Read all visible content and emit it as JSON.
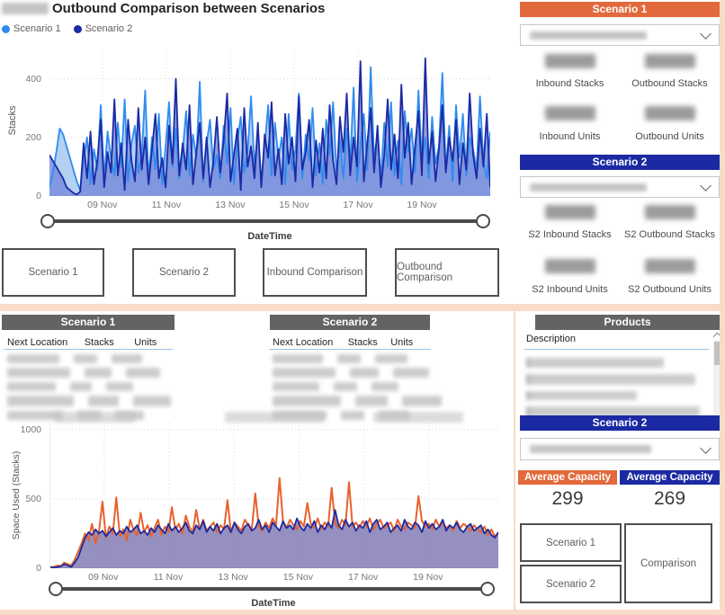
{
  "colors": {
    "accent_orange": "#E2693B",
    "accent_blue": "#1B2AA3",
    "header_gray": "#636363",
    "series_light_blue": "#2E8CF0",
    "series_navy": "#1B2AA5",
    "series_orange": "#E8622C",
    "fill_purple": "#8A84B8",
    "divider_peach": "#F8DBC9"
  },
  "top_chart": {
    "title": "Outbound Comparison between Scenarios",
    "legend": [
      {
        "label": "Scenario 1"
      },
      {
        "label": "Scenario 2"
      }
    ]
  },
  "top_buttons": [
    "Scenario 1",
    "Scenario 2",
    "Inbound Comparison",
    "Outbound Comparison"
  ],
  "scenario1_panel": {
    "header": "Scenario 1",
    "metrics": [
      {
        "label": "Inbound Stacks"
      },
      {
        "label": "Outbound Stacks"
      },
      {
        "label": "Inbound Units"
      },
      {
        "label": "Outbound Units"
      }
    ]
  },
  "scenario2_panel": {
    "header": "Scenario 2",
    "metrics": [
      {
        "label": "S2 Inbound Stacks"
      },
      {
        "label": "S2 Outbound Stacks"
      },
      {
        "label": "S2 Inbound Units"
      },
      {
        "label": "S2 Outbound Units"
      }
    ]
  },
  "tables": {
    "s1": {
      "header": "Scenario 1",
      "columns": [
        "Next Location",
        "Stacks",
        "Units"
      ]
    },
    "s2": {
      "header": "Scenario 2",
      "columns": [
        "Next Location",
        "Stacks",
        "Units"
      ]
    },
    "products": {
      "header": "Products",
      "columns": [
        "Description"
      ]
    }
  },
  "bottom_right": {
    "header": "Scenario 2",
    "capacity": [
      {
        "label": "Average Capacity",
        "value": "299",
        "color": "#E2693B"
      },
      {
        "label": "Average Capacity",
        "value": "269",
        "color": "#1B2AA3"
      }
    ],
    "buttons": [
      "Scenario 1",
      "Scenario 2",
      "Comparison"
    ]
  },
  "chart_data": [
    {
      "type": "area",
      "title": "Outbound Comparison between Scenarios",
      "xlabel": "DateTime",
      "ylabel": "Stacks",
      "yticks": [
        0,
        200,
        400
      ],
      "ylim": [
        0,
        500
      ],
      "grid": true,
      "legend_position": "top-left",
      "xticks": [
        "09 Nov",
        "11 Nov",
        "13 Nov",
        "15 Nov",
        "17 Nov",
        "19 Nov"
      ],
      "xtick_pos": [
        0.12,
        0.265,
        0.41,
        0.555,
        0.7,
        0.845
      ],
      "series": [
        {
          "name": "Scenario 1",
          "color": "#2E8CF0",
          "fill": "#A7C9F2",
          "fill_opacity": 0.85,
          "values": [
            30,
            80,
            150,
            230,
            210,
            170,
            130,
            90,
            50,
            20,
            120,
            200,
            40,
            160,
            90,
            310,
            60,
            220,
            130,
            70,
            250,
            100,
            330,
            50,
            180,
            240,
            80,
            140,
            360,
            60,
            200,
            90,
            280,
            40,
            170,
            320,
            100,
            230,
            60,
            150,
            290,
            70,
            210,
            130,
            390,
            50,
            180,
            260,
            90,
            140,
            60,
            240,
            110,
            300,
            40,
            190,
            270,
            80,
            150,
            340,
            100,
            220,
            50,
            170,
            310,
            70,
            250,
            130,
            200,
            40,
            280,
            90,
            160,
            350,
            60,
            210,
            120,
            300,
            70,
            180,
            40,
            260,
            140,
            320,
            80,
            190,
            60,
            230,
            110,
            370,
            50,
            170,
            280,
            90,
            440,
            130,
            210,
            60,
            250,
            100,
            320,
            70,
            190,
            40,
            290,
            150,
            230,
            80,
            360,
            120,
            200,
            60,
            270,
            110,
            170,
            420,
            90,
            240,
            50,
            310,
            130,
            280,
            70,
            200,
            160,
            90,
            340,
            120,
            60,
            220
          ]
        },
        {
          "name": "Scenario 2",
          "color": "#1B2AA5",
          "fill": "#7488D9",
          "fill_opacity": 0.8,
          "values": [
            140,
            120,
            100,
            80,
            60,
            30,
            20,
            10,
            5,
            15,
            180,
            60,
            220,
            40,
            120,
            260,
            30,
            150,
            80,
            330,
            70,
            180,
            20,
            260,
            120,
            50,
            300,
            90,
            200,
            40,
            160,
            280,
            60,
            130,
            30,
            240,
            110,
            400,
            70,
            180,
            90,
            310,
            40,
            150,
            250,
            60,
            200,
            30,
            120,
            270,
            80,
            190,
            350,
            50,
            140,
            230,
            20,
            300,
            100,
            170,
            60,
            250,
            30,
            210,
            130,
            320,
            70,
            160,
            40,
            280,
            110,
            200,
            50,
            340,
            90,
            150,
            260,
            30,
            190,
            80,
            230,
            60,
            310,
            120,
            40,
            270,
            150,
            350,
            70,
            200,
            100,
            460,
            50,
            180,
            300,
            80,
            240,
            30,
            140,
            330,
            90,
            210,
            60,
            380,
            130,
            250,
            40,
            170,
            290,
            70,
            470,
            110,
            220,
            50,
            160,
            310,
            80,
            200,
            120,
            260,
            40,
            180,
            90,
            350,
            140,
            60,
            230,
            100,
            280,
            30
          ]
        }
      ]
    },
    {
      "type": "line",
      "title": "",
      "xlabel": "DateTime",
      "ylabel": "Space Used (Stacks)",
      "yticks": [
        0,
        500,
        1000
      ],
      "ylim": [
        0,
        1050
      ],
      "grid": true,
      "legend_position": "none",
      "xticks": [
        "09 Nov",
        "11 Nov",
        "13 Nov",
        "15 Nov",
        "17 Nov",
        "19 Nov"
      ],
      "xtick_pos": [
        0.12,
        0.265,
        0.41,
        0.555,
        0.7,
        0.845
      ],
      "series": [
        {
          "name": "Scenario 1",
          "color": "#E8622C",
          "fill": null,
          "fill_opacity": 0,
          "values": [
            5,
            10,
            20,
            15,
            40,
            30,
            20,
            60,
            120,
            180,
            250,
            200,
            320,
            180,
            260,
            480,
            220,
            300,
            250,
            510,
            230,
            280,
            200,
            350,
            270,
            240,
            400,
            260,
            310,
            230,
            290,
            350,
            240,
            300,
            260,
            440,
            280,
            320,
            250,
            380,
            300,
            260,
            420,
            280,
            350,
            270,
            300,
            330,
            260,
            310,
            280,
            490,
            260,
            330,
            300,
            270,
            350,
            310,
            280,
            540,
            300,
            270,
            330,
            290,
            360,
            310,
            650,
            330,
            290,
            350,
            310,
            280,
            340,
            300,
            470,
            320,
            290,
            360,
            280,
            330,
            300,
            580,
            320,
            290,
            350,
            310,
            620,
            300,
            330,
            290,
            340,
            300,
            360,
            280,
            320,
            350,
            290,
            310,
            330,
            270,
            350,
            300,
            280,
            330,
            310,
            290,
            520,
            340,
            300,
            320,
            280,
            350,
            300,
            330,
            290,
            310,
            270,
            340,
            290,
            320,
            300,
            270,
            310,
            280,
            260,
            300,
            240,
            280,
            230,
            250
          ]
        },
        {
          "name": "Scenario 2",
          "color": "#1F2AA0",
          "fill": "#8A84B8",
          "fill_opacity": 0.9,
          "values": [
            10,
            5,
            8,
            15,
            30,
            20,
            10,
            40,
            80,
            150,
            220,
            260,
            240,
            280,
            250,
            270,
            230,
            260,
            290,
            240,
            270,
            250,
            300,
            260,
            280,
            310,
            250,
            270,
            240,
            290,
            260,
            310,
            280,
            250,
            320,
            270,
            300,
            260,
            290,
            330,
            270,
            250,
            310,
            280,
            340,
            260,
            300,
            270,
            320,
            250,
            290,
            310,
            260,
            330,
            280,
            250,
            300,
            320,
            270,
            290,
            350,
            280,
            310,
            260,
            330,
            300,
            270,
            340,
            290,
            310,
            280,
            360,
            300,
            270,
            320,
            290,
            340,
            260,
            310,
            280,
            330,
            290,
            420,
            310,
            280,
            350,
            300,
            330,
            270,
            310,
            290,
            340,
            260,
            320,
            350,
            280,
            300,
            330,
            260,
            290,
            310,
            270,
            350,
            300,
            280,
            330,
            310,
            260,
            340,
            290,
            320,
            280,
            300,
            350,
            270,
            310,
            290,
            330,
            280,
            260,
            300,
            320,
            270,
            290,
            310,
            250,
            280,
            240,
            220,
            260
          ]
        }
      ]
    }
  ]
}
